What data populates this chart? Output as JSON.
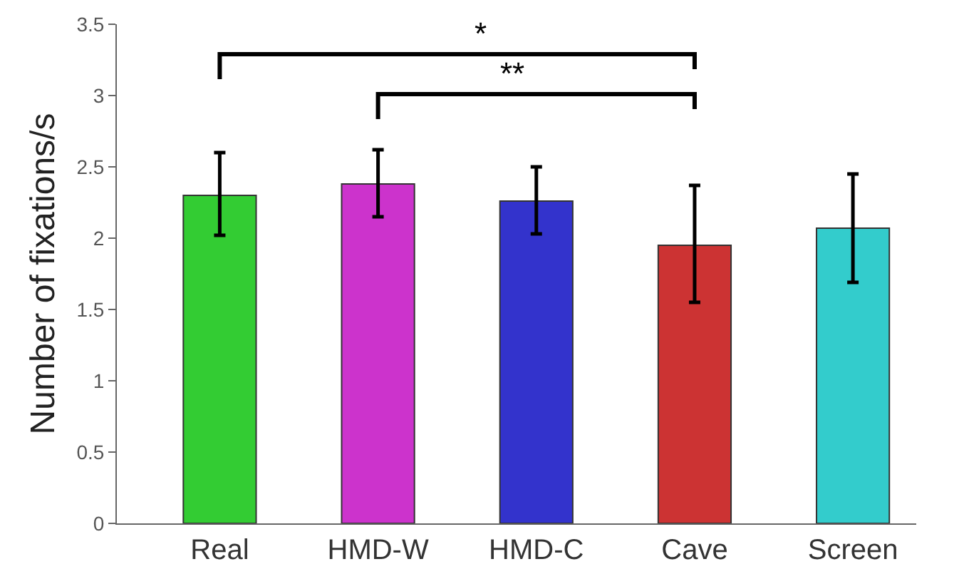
{
  "chart_data": {
    "type": "bar",
    "ylabel": "Number of fixations/s",
    "categories": [
      "Real",
      "HMD-W",
      "HMD-C",
      "Cave",
      "Screen"
    ],
    "values": [
      2.3,
      2.38,
      2.26,
      1.95,
      2.07
    ],
    "colors": [
      "#33cc33",
      "#cc33cc",
      "#3333cc",
      "#cc3333",
      "#33cccc"
    ],
    "errors": [
      [
        2.02,
        2.6
      ],
      [
        2.15,
        2.62
      ],
      [
        2.03,
        2.5
      ],
      [
        1.55,
        2.37
      ],
      [
        1.69,
        2.45
      ]
    ],
    "ylim": [
      0,
      3.5
    ],
    "yticks": [
      0,
      0.5,
      1,
      1.5,
      2,
      2.5,
      3,
      3.5
    ],
    "grid": false,
    "annotations": [
      "*",
      "**"
    ]
  }
}
